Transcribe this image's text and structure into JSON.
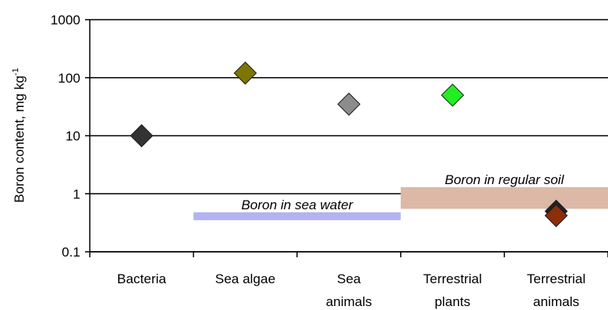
{
  "chart_data": {
    "type": "scatter",
    "y_scale": "log",
    "ylim": [
      0.1,
      1000
    ],
    "y_ticks": [
      {
        "value": 1000,
        "label": "1000"
      },
      {
        "value": 100,
        "label": "100"
      },
      {
        "value": 10,
        "label": "10"
      },
      {
        "value": 1,
        "label": "1"
      },
      {
        "value": 0.1,
        "label": "0.1"
      }
    ],
    "ylabel_text": "Boron content, mg kg",
    "ylabel_superscript": "-1",
    "xlabel": "",
    "grid": "horizontal major gridlines",
    "legend": "none",
    "categories": [
      {
        "lines": [
          "Bacteria"
        ]
      },
      {
        "lines": [
          "Sea algae"
        ]
      },
      {
        "lines": [
          "Sea",
          "animals"
        ]
      },
      {
        "lines": [
          "Terrestrial",
          "plants"
        ]
      },
      {
        "lines": [
          "Terrestrial",
          "animals"
        ]
      }
    ],
    "points": [
      {
        "category_index": 0,
        "value": 10,
        "color": "#333333"
      },
      {
        "category_index": 1,
        "value": 120,
        "color": "#7d7600"
      },
      {
        "category_index": 2,
        "value": 35,
        "color": "#8c8c8c"
      },
      {
        "category_index": 3,
        "value": 50,
        "color": "#22ee22"
      },
      {
        "category_index": 4,
        "value": 0.5,
        "color": "#222222"
      },
      {
        "category_index": 4,
        "value": 0.42,
        "color": "#8b2e0a"
      }
    ],
    "bands": [
      {
        "label": "Boron in sea water",
        "from_category": 1,
        "to_category": 2,
        "y_low": 0.35,
        "y_high": 0.48,
        "color": "#b3b3f2"
      },
      {
        "label": "Boron in regular soil",
        "from_category": 3,
        "to_category": 4,
        "y_low": 0.55,
        "y_high": 1.3,
        "color": "#dcb9a6"
      }
    ]
  }
}
